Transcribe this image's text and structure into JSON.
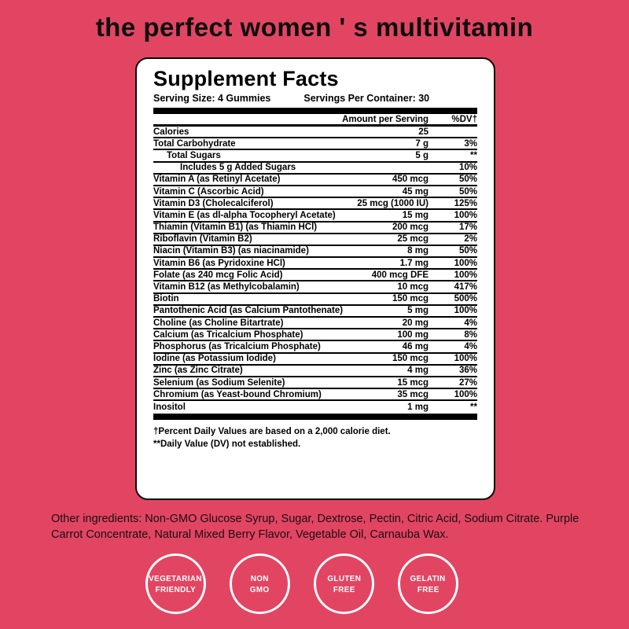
{
  "title": "the perfect women ' s multivitamin",
  "colors": {
    "background": "#e24562",
    "panel_background": "#ffffff",
    "ink": "#000000",
    "badge": "#ffffff"
  },
  "panel": {
    "heading": "Supplement Facts",
    "serving_size": "Serving Size: 4 Gummies",
    "servings_per_container": "Servings Per Container: 30",
    "col_amount": "Amount per Serving",
    "col_dv": "%DV†",
    "rows": [
      {
        "name": "Calories",
        "amount": "25",
        "dv": "",
        "indent": 0
      },
      {
        "name": "Total Carbohydrate",
        "amount": "7 g",
        "dv": "3%",
        "indent": 0
      },
      {
        "name": "Total Sugars",
        "amount": "5 g",
        "dv": "**",
        "indent": 1
      },
      {
        "name": "Includes 5 g Added Sugars",
        "amount": "",
        "dv": "10%",
        "indent": 2
      },
      {
        "name": "Vitamin A (as Retinyl Acetate)",
        "amount": "450 mcg",
        "dv": "50%",
        "indent": 0
      },
      {
        "name": "Vitamin C (Ascorbic Acid)",
        "amount": "45 mg",
        "dv": "50%",
        "indent": 0
      },
      {
        "name": "Vitamin D3 (Cholecalciferol)",
        "amount": "25 mcg (1000 IU)",
        "dv": "125%",
        "indent": 0
      },
      {
        "name": "Vitamin E (as dl-alpha Tocopheryl Acetate)",
        "amount": "15 mg",
        "dv": "100%",
        "indent": 0
      },
      {
        "name": "Thiamin (Vitamin B1) (as Thiamin HCl)",
        "amount": "200 mcg",
        "dv": "17%",
        "indent": 0
      },
      {
        "name": "Riboflavin (Vitamin B2)",
        "amount": "25 mcg",
        "dv": "2%",
        "indent": 0
      },
      {
        "name": "Niacin (Vitamin B3) (as niacinamide)",
        "amount": "8 mg",
        "dv": "50%",
        "indent": 0
      },
      {
        "name": "Vitamin B6 (as Pyridoxine HCl)",
        "amount": "1.7 mg",
        "dv": "100%",
        "indent": 0
      },
      {
        "name": "Folate (as 240 mcg Folic Acid)",
        "amount": "400 mcg DFE",
        "dv": "100%",
        "indent": 0
      },
      {
        "name": "Vitamin B12 (as Methylcobalamin)",
        "amount": "10 mcg",
        "dv": "417%",
        "indent": 0
      },
      {
        "name": "Biotin",
        "amount": "150 mcg",
        "dv": "500%",
        "indent": 0
      },
      {
        "name": "Pantothenic Acid (as Calcium Pantothenate)",
        "amount": "5 mg",
        "dv": "100%",
        "indent": 0
      },
      {
        "name": "Choline (as Choline Bitartrate)",
        "amount": "20 mg",
        "dv": "4%",
        "indent": 0
      },
      {
        "name": "Calcium (as Tricalcium Phosphate)",
        "amount": "100 mg",
        "dv": "8%",
        "indent": 0
      },
      {
        "name": "Phosphorus (as Tricalcium Phosphate)",
        "amount": "46 mg",
        "dv": "4%",
        "indent": 0
      },
      {
        "name": "Iodine (as Potassium Iodide)",
        "amount": "150 mcg",
        "dv": "100%",
        "indent": 0
      },
      {
        "name": "Zinc (as Zinc Citrate)",
        "amount": "4 mg",
        "dv": "36%",
        "indent": 0
      },
      {
        "name": "Selenium (as Sodium Selenite)",
        "amount": "15 mcg",
        "dv": "27%",
        "indent": 0
      },
      {
        "name": "Chromium (as Yeast-bound Chromium)",
        "amount": "35 mcg",
        "dv": "100%",
        "indent": 0
      },
      {
        "name": "Inositol",
        "amount": "1 mg",
        "dv": "**",
        "indent": 0
      }
    ],
    "footnote_dagger": "†Percent Daily Values are based on a 2,000 calorie diet.",
    "footnote_dv": "**Daily Value (DV) not established."
  },
  "other_ingredients": "Other ingredients: Non-GMO Glucose Syrup, Sugar, Dextrose, Pectin, Citric Acid, Sodium Citrate. Purple Carrot Concentrate, Natural Mixed Berry Flavor, Vegetable Oil, Carnauba Wax.",
  "badges": [
    {
      "line1": "VEGETARIAN",
      "line2": "FRIENDLY"
    },
    {
      "line1": "NON",
      "line2": "GMO"
    },
    {
      "line1": "GLUTEN",
      "line2": "FREE"
    },
    {
      "line1": "GELATIN",
      "line2": "FREE"
    }
  ]
}
